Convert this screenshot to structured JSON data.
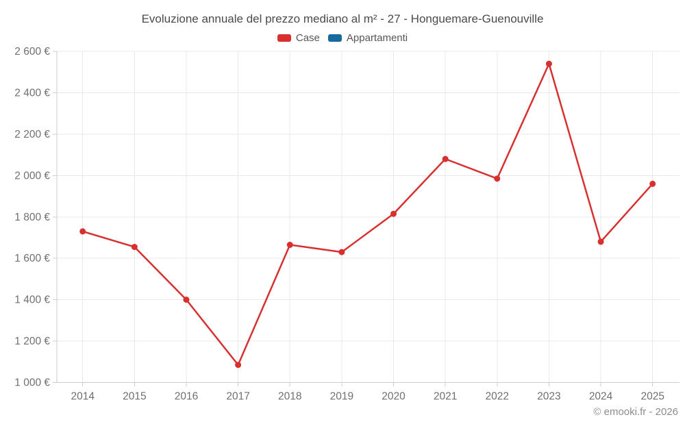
{
  "footer": "© emooki.fr - 2026",
  "colors": {
    "background": "#ffffff",
    "grid": "#e8e8e8",
    "axis": "#cccccc",
    "tick": "#cccccc",
    "tick_label": "#6f6f6f",
    "title": "#4a4a4d",
    "legend_text": "#555555",
    "footer_text": "#8c8c8c"
  },
  "chart_data": {
    "type": "line",
    "title": "Evoluzione annuale del prezzo mediano al m² - 27 - Honguemare-Guenouville",
    "x": [
      2014,
      2015,
      2016,
      2017,
      2018,
      2019,
      2020,
      2021,
      2022,
      2023,
      2024,
      2025
    ],
    "series": [
      {
        "name": "Case",
        "color": "#d7302f",
        "values": [
          1730,
          1655,
          1400,
          1085,
          1665,
          1630,
          1815,
          2080,
          1985,
          2540,
          1680,
          1960
        ]
      },
      {
        "name": "Appartamenti",
        "color": "#17699e",
        "values": []
      }
    ],
    "xlabel": "",
    "ylabel": "",
    "ylim": [
      1000,
      2600
    ],
    "ytick_step": 200,
    "ytick_suffix": " €",
    "grid": true,
    "legend_position": "top"
  }
}
